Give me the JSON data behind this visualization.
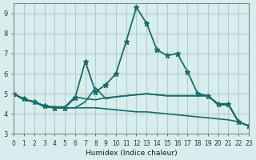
{
  "xlabel": "Humidex (Indice chaleur)",
  "ylabel": "",
  "background_color": "#d8eeee",
  "grid_color": "#b0cccc",
  "line_color": "#1a6b6b",
  "xlim": [
    0,
    23
  ],
  "ylim": [
    3,
    9.5
  ],
  "yticks": [
    3,
    4,
    5,
    6,
    7,
    8,
    9
  ],
  "xticks": [
    0,
    1,
    2,
    3,
    4,
    5,
    6,
    7,
    8,
    9,
    10,
    11,
    12,
    13,
    14,
    15,
    16,
    17,
    18,
    19,
    20,
    21,
    22,
    23
  ],
  "series": [
    {
      "x": [
        0,
        1,
        2,
        3,
        4,
        5,
        6,
        7,
        8,
        9,
        10,
        11,
        12,
        13,
        14,
        15,
        16,
        17,
        18,
        19,
        20,
        21,
        22,
        23
      ],
      "y": [
        5.0,
        4.75,
        4.6,
        4.4,
        4.3,
        4.3,
        4.8,
        6.6,
        5.1,
        5.45,
        6.0,
        7.6,
        9.3,
        8.5,
        7.2,
        6.9,
        7.0,
        6.1,
        5.0,
        4.9,
        4.5,
        4.5,
        3.6,
        3.4
      ],
      "marker": "*",
      "linewidth": 1.3,
      "markersize": 5
    },
    {
      "x": [
        0,
        1,
        2,
        3,
        4,
        5,
        6,
        7,
        8,
        9,
        10,
        11,
        12,
        13,
        14,
        15,
        16,
        17,
        18,
        19,
        20,
        21,
        22,
        23
      ],
      "y": [
        5.0,
        4.7,
        4.6,
        4.4,
        4.35,
        4.35,
        4.85,
        4.75,
        4.7,
        4.8,
        4.85,
        4.9,
        4.95,
        5.0,
        4.95,
        4.9,
        4.9,
        4.9,
        4.9,
        4.9,
        4.45,
        4.45,
        3.6,
        3.4
      ],
      "marker": null,
      "linewidth": 1.2,
      "markersize": 0
    },
    {
      "x": [
        0,
        1,
        2,
        3,
        4,
        5,
        6,
        7,
        8,
        9,
        10,
        11,
        12,
        13,
        14,
        15,
        16,
        17,
        18,
        19,
        20,
        21,
        22,
        23
      ],
      "y": [
        5.0,
        4.7,
        4.6,
        4.35,
        4.3,
        4.3,
        4.3,
        4.3,
        4.3,
        4.25,
        4.2,
        4.15,
        4.1,
        4.1,
        4.05,
        4.0,
        3.95,
        3.9,
        3.85,
        3.8,
        3.75,
        3.7,
        3.6,
        3.4
      ],
      "marker": null,
      "linewidth": 1.2,
      "markersize": 0
    },
    {
      "x": [
        0,
        1,
        2,
        3,
        4,
        5,
        6,
        7,
        8,
        9,
        10,
        11,
        12,
        13,
        14,
        15,
        16,
        17,
        18,
        19,
        20,
        21,
        22,
        23
      ],
      "y": [
        5.0,
        4.7,
        4.6,
        4.35,
        4.3,
        4.3,
        4.3,
        4.6,
        5.3,
        4.75,
        4.85,
        4.9,
        4.95,
        5.0,
        4.95,
        4.9,
        4.9,
        4.9,
        4.9,
        4.9,
        4.45,
        4.45,
        3.6,
        3.4
      ],
      "marker": null,
      "linewidth": 1.2,
      "markersize": 0
    }
  ]
}
